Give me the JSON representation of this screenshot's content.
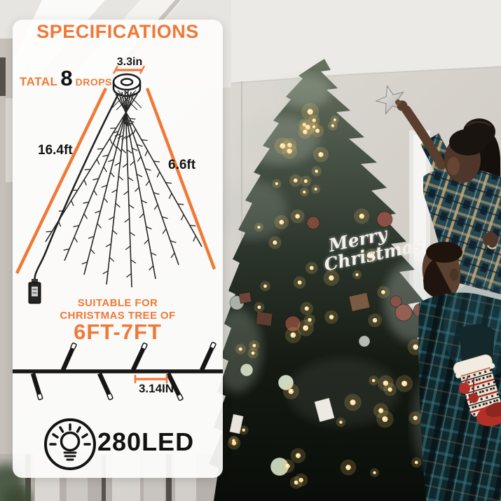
{
  "panel": {
    "title": "SPECIFICATIONS",
    "total": {
      "prefix": "TATAL",
      "count": "8",
      "suffix": "DROPS"
    },
    "ring_width_label": "3.3in",
    "strand_length_left": "16.4ft",
    "strand_length_right": "6.6ft",
    "suitable_line1": "SUITABLE FOR",
    "suitable_line2": "CHRISTMAS TREE OF",
    "tree_size": "6FT-7FT",
    "bulb_spacing_label": "3.14IN",
    "led_count": "280LED",
    "icons": {
      "led": "light-bulb-icon",
      "power": "power-plug-icon",
      "top": "hanging-ring-icon"
    },
    "colors": {
      "accent": "#F07937",
      "ink": "#161616"
    }
  },
  "photo": {
    "tree_sign_line1": "Merry",
    "tree_sign_line2": "Christmas",
    "colors": {
      "tree_light": "#FFE3A1",
      "plaid_teal": "#25474F"
    }
  }
}
